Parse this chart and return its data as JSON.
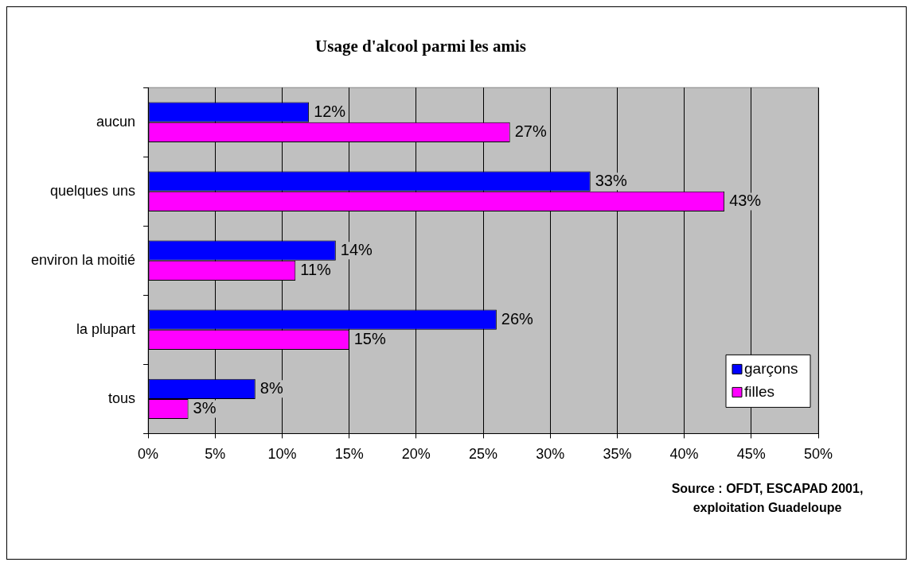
{
  "chart_data": {
    "type": "bar",
    "orientation": "horizontal",
    "title": "Usage d'alcool parmi les amis",
    "categories": [
      "aucun",
      "quelques uns",
      "environ la moitié",
      "la plupart",
      "tous"
    ],
    "series": [
      {
        "name": "garçons",
        "color": "#0000ff",
        "values": [
          12,
          33,
          14,
          26,
          8
        ],
        "value_labels": [
          "12%",
          "33%",
          "14%",
          "26%",
          "8%"
        ]
      },
      {
        "name": "filles",
        "color": "#ff00ff",
        "values": [
          27,
          43,
          11,
          15,
          3
        ],
        "value_labels": [
          "27%",
          "43%",
          "11%",
          "15%",
          "3%"
        ]
      }
    ],
    "xlim": [
      0,
      50
    ],
    "xticks": [
      {
        "value": 0,
        "label": "0%"
      },
      {
        "value": 5,
        "label": "5%"
      },
      {
        "value": 10,
        "label": "10%"
      },
      {
        "value": 15,
        "label": "15%"
      },
      {
        "value": 20,
        "label": "20%"
      },
      {
        "value": 25,
        "label": "25%"
      },
      {
        "value": 30,
        "label": "30%"
      },
      {
        "value": 35,
        "label": "35%"
      },
      {
        "value": 40,
        "label": "40%"
      },
      {
        "value": 45,
        "label": "45%"
      },
      {
        "value": 50,
        "label": "50%"
      }
    ],
    "grid": "x",
    "legend": "bottom right",
    "annotations": [
      "Source : OFDT, ESCAPAD 2001,",
      "exploitation Guadeloupe"
    ]
  }
}
